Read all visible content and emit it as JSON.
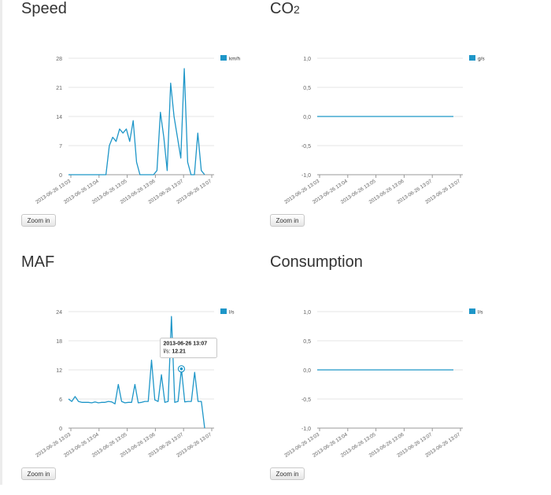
{
  "colors": {
    "series": "#1e96c8",
    "axis": "#999999",
    "grid": "#e6e6e6",
    "tick_text": "#666666",
    "tooltip_border": "#bbbbbb"
  },
  "categories": [
    "2013-06-26 13:03",
    "2013-06-26 13:04",
    "2013-06-26 13:05",
    "2013-06-26 13:06",
    "2013-06-26 13:07",
    "2013-06-26 13:07"
  ],
  "panels": [
    {
      "title": "Speed",
      "zoom_label": "Zoom in",
      "chart_data": {
        "type": "line",
        "title": "Speed",
        "xlabel": "",
        "ylabel": "",
        "x_tick_labels": [
          "2013-06-26 13:03",
          "2013-06-26 13:04",
          "2013-06-26 13:05",
          "2013-06-26 13:06",
          "2013-06-26 13:07",
          "2013-06-26 13:07"
        ],
        "yticks": [
          "28",
          "21",
          "14",
          "7",
          "0"
        ],
        "ylim": [
          0,
          28
        ],
        "grid": true,
        "legend": "top-right",
        "series": [
          {
            "name": "km/h",
            "values": [
              0,
              0,
              0,
              0,
              0,
              0,
              0,
              0,
              0,
              0,
              0,
              0,
              7,
              9,
              8,
              11,
              10,
              11,
              8,
              13,
              3,
              0,
              0,
              0,
              0,
              0,
              1,
              15,
              9,
              1,
              22,
              14,
              9,
              4,
              25.5,
              3,
              0,
              0,
              10,
              1,
              0
            ]
          }
        ]
      }
    },
    {
      "title": "CO2",
      "zoom_label": "Zoom in",
      "chart_data": {
        "type": "line",
        "title": "CO2",
        "xlabel": "",
        "ylabel": "",
        "x_tick_labels": [
          "2013-06-26 13:03",
          "2013-06-26 13:04",
          "2013-06-26 13:05",
          "2013-06-26 13:06",
          "2013-06-26 13:07",
          "2013-06-26 13:07"
        ],
        "yticks": [
          "1,0",
          "0,5",
          "0,0",
          "-0,5",
          "-1,0"
        ],
        "ylim": [
          -1,
          1
        ],
        "grid": true,
        "legend": "top-right",
        "series": [
          {
            "name": "g/s",
            "values": [
              0,
              0,
              0,
              0,
              0,
              0,
              0,
              0,
              0,
              0,
              0,
              0,
              0,
              0,
              0,
              0,
              0,
              0,
              0,
              0,
              0,
              0,
              0,
              0,
              0,
              0,
              0,
              0,
              0,
              0,
              0,
              0,
              0,
              0,
              0,
              0,
              0,
              0,
              0,
              0,
              0
            ]
          }
        ]
      }
    },
    {
      "title": "MAF",
      "zoom_label": "Zoom in",
      "chart_data": {
        "type": "line",
        "title": "MAF",
        "xlabel": "",
        "ylabel": "",
        "x_tick_labels": [
          "2013-06-26 13:03",
          "2013-06-26 13:04",
          "2013-06-26 13:05",
          "2013-06-26 13:06",
          "2013-06-26 13:07",
          "2013-06-26 13:07"
        ],
        "yticks": [
          "24",
          "18",
          "12",
          "6",
          "0"
        ],
        "ylim": [
          0,
          24
        ],
        "grid": true,
        "legend": "top-right",
        "tooltip": {
          "title": "2013-06-26 13:07",
          "series_label": "l/s:",
          "value": "12.21",
          "point_index": 34
        },
        "series": [
          {
            "name": "l/s",
            "values": [
              6,
              5.5,
              6.5,
              5.5,
              5.3,
              5.3,
              5.3,
              5.2,
              5.4,
              5.2,
              5.3,
              5.3,
              5.5,
              5.4,
              5,
              9,
              5.5,
              5.2,
              5.3,
              5.3,
              9,
              5.2,
              5.3,
              5.5,
              5.5,
              14,
              5.8,
              5.5,
              11,
              5.3,
              5.5,
              23,
              5.3,
              5.5,
              12.21,
              5.4,
              5.5,
              5.5,
              11.5,
              5.5,
              5.5,
              0
            ]
          }
        ]
      }
    },
    {
      "title": "Consumption",
      "zoom_label": "Zoom in",
      "chart_data": {
        "type": "line",
        "title": "Consumption",
        "xlabel": "",
        "ylabel": "",
        "x_tick_labels": [
          "2013-06-26 13:03",
          "2013-06-26 13:04",
          "2013-06-26 13:05",
          "2013-06-26 13:06",
          "2013-06-26 13:07",
          "2013-06-26 13:07"
        ],
        "yticks": [
          "1,0",
          "0,5",
          "0,0",
          "-0,5",
          "-1,0"
        ],
        "ylim": [
          -1,
          1
        ],
        "grid": true,
        "legend": "top-right",
        "series": [
          {
            "name": "l/s",
            "values": [
              0,
              0,
              0,
              0,
              0,
              0,
              0,
              0,
              0,
              0,
              0,
              0,
              0,
              0,
              0,
              0,
              0,
              0,
              0,
              0,
              0,
              0,
              0,
              0,
              0,
              0,
              0,
              0,
              0,
              0,
              0,
              0,
              0,
              0,
              0,
              0,
              0,
              0,
              0,
              0,
              0
            ]
          }
        ]
      }
    }
  ]
}
